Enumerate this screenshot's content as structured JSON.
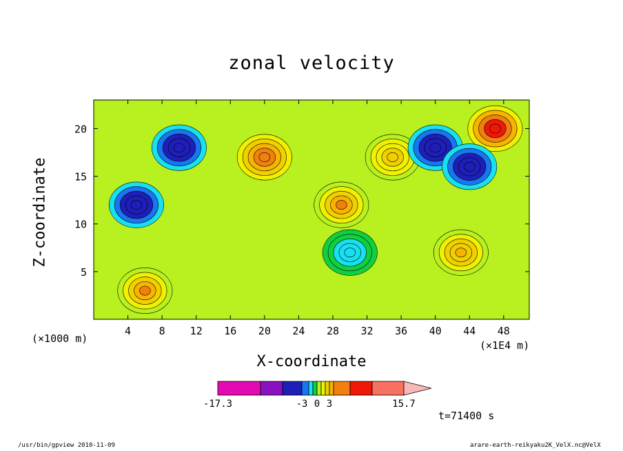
{
  "chart_data": {
    "type": "heatmap",
    "title": "zonal velocity",
    "xlabel": "X-coordinate",
    "ylabel": "Z-coordinate",
    "x_unit_left": "(×1000 m)",
    "x_unit_right": "(×1E4 m)",
    "xlim": [
      0,
      51
    ],
    "ylim": [
      0,
      23
    ],
    "x_ticks": [
      4,
      8,
      12,
      16,
      20,
      24,
      28,
      32,
      36,
      40,
      44,
      48
    ],
    "y_ticks": [
      5,
      10,
      15,
      20
    ],
    "time_label": "t=71400 s",
    "colorbar": {
      "labels": [
        "-17.3",
        "-3",
        "0",
        "3",
        "15.7"
      ],
      "label_values": [
        -17.3,
        -3,
        0,
        3,
        15.7
      ],
      "levels": [
        -17.3,
        -12,
        -7,
        -3,
        -2,
        -1,
        0,
        1,
        2,
        3,
        4,
        6,
        10,
        15.7
      ],
      "colors": [
        "#e20ab0",
        "#8a10c0",
        "#1d1fb8",
        "#1877f0",
        "#18e0f0",
        "#10d040",
        "#b8f020",
        "#f0f000",
        "#f0d000",
        "#f8b400",
        "#f08010",
        "#f01808",
        "#f87060",
        "#f8b8b8"
      ]
    },
    "features": [
      {
        "x": 6,
        "z": 3,
        "value": 5
      },
      {
        "x": 10,
        "z": 18,
        "value": -8
      },
      {
        "x": 20,
        "z": 17,
        "value": 6
      },
      {
        "x": 29,
        "z": 12,
        "value": 5
      },
      {
        "x": 35,
        "z": 17,
        "value": 3
      },
      {
        "x": 40,
        "z": 18,
        "value": -6
      },
      {
        "x": 47,
        "z": 20,
        "value": 9
      },
      {
        "x": 44,
        "z": 16,
        "value": -8
      },
      {
        "x": 43,
        "z": 7,
        "value": 4
      },
      {
        "x": 30,
        "z": 7,
        "value": -2
      },
      {
        "x": 5,
        "z": 12,
        "value": -6
      }
    ]
  },
  "footer": {
    "left": "/usr/bin/gpview  2010-11-09",
    "right": "arare-earth-reikyaku2K_VelX.nc@VelX"
  }
}
